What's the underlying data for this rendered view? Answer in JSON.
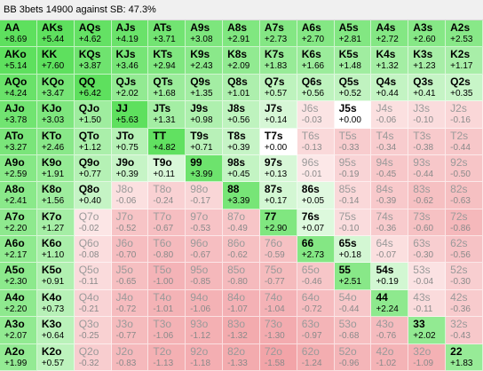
{
  "title": "BB 3bets 14900 against SB: 47.3%",
  "ranks": [
    "A",
    "K",
    "Q",
    "J",
    "T",
    "9",
    "8",
    "7",
    "6",
    "5",
    "4",
    "3",
    "2"
  ],
  "cells": [
    [
      {
        "h": "AA",
        "v": "+8.69",
        "s": 1
      },
      {
        "h": "AKs",
        "v": "+5.44",
        "s": 1
      },
      {
        "h": "AQs",
        "v": "+4.62",
        "s": 1
      },
      {
        "h": "AJs",
        "v": "+4.19",
        "s": 1
      },
      {
        "h": "ATs",
        "v": "+3.71",
        "s": 1
      },
      {
        "h": "A9s",
        "v": "+3.08",
        "s": 1
      },
      {
        "h": "A8s",
        "v": "+2.91",
        "s": 1
      },
      {
        "h": "A7s",
        "v": "+2.73",
        "s": 1
      },
      {
        "h": "A6s",
        "v": "+2.70",
        "s": 1
      },
      {
        "h": "A5s",
        "v": "+2.81",
        "s": 1
      },
      {
        "h": "A4s",
        "v": "+2.72",
        "s": 1
      },
      {
        "h": "A3s",
        "v": "+2.60",
        "s": 1
      },
      {
        "h": "A2s",
        "v": "+2.53",
        "s": 1
      }
    ],
    [
      {
        "h": "AKo",
        "v": "+5.14",
        "s": 1
      },
      {
        "h": "KK",
        "v": "+7.60",
        "s": 1
      },
      {
        "h": "KQs",
        "v": "+3.87",
        "s": 1
      },
      {
        "h": "KJs",
        "v": "+3.46",
        "s": 1
      },
      {
        "h": "KTs",
        "v": "+2.94",
        "s": 1
      },
      {
        "h": "K9s",
        "v": "+2.43",
        "s": 1
      },
      {
        "h": "K8s",
        "v": "+2.09",
        "s": 1
      },
      {
        "h": "K7s",
        "v": "+1.83",
        "s": 1
      },
      {
        "h": "K6s",
        "v": "+1.66",
        "s": 1
      },
      {
        "h": "K5s",
        "v": "+1.48",
        "s": 1
      },
      {
        "h": "K4s",
        "v": "+1.32",
        "s": 1
      },
      {
        "h": "K3s",
        "v": "+1.23",
        "s": 1
      },
      {
        "h": "K2s",
        "v": "+1.17",
        "s": 1
      }
    ],
    [
      {
        "h": "AQo",
        "v": "+4.24",
        "s": 1
      },
      {
        "h": "KQo",
        "v": "+3.47",
        "s": 1
      },
      {
        "h": "QQ",
        "v": "+6.42",
        "s": 1
      },
      {
        "h": "QJs",
        "v": "+2.02",
        "s": 1
      },
      {
        "h": "QTs",
        "v": "+1.68",
        "s": 1
      },
      {
        "h": "Q9s",
        "v": "+1.35",
        "s": 1
      },
      {
        "h": "Q8s",
        "v": "+1.01",
        "s": 1
      },
      {
        "h": "Q7s",
        "v": "+0.57",
        "s": 1
      },
      {
        "h": "Q6s",
        "v": "+0.56",
        "s": 1
      },
      {
        "h": "Q5s",
        "v": "+0.52",
        "s": 1
      },
      {
        "h": "Q4s",
        "v": "+0.44",
        "s": 1
      },
      {
        "h": "Q3s",
        "v": "+0.41",
        "s": 1
      },
      {
        "h": "Q2s",
        "v": "+0.35",
        "s": 1
      }
    ],
    [
      {
        "h": "AJo",
        "v": "+3.78",
        "s": 1
      },
      {
        "h": "KJo",
        "v": "+3.03",
        "s": 1
      },
      {
        "h": "QJo",
        "v": "+1.50",
        "s": 1
      },
      {
        "h": "JJ",
        "v": "+5.63",
        "s": 1
      },
      {
        "h": "JTs",
        "v": "+1.31",
        "s": 1
      },
      {
        "h": "J9s",
        "v": "+0.98",
        "s": 1
      },
      {
        "h": "J8s",
        "v": "+0.56",
        "s": 1
      },
      {
        "h": "J7s",
        "v": "+0.14",
        "s": 1
      },
      {
        "h": "J6s",
        "v": "-0.03",
        "s": 0
      },
      {
        "h": "J5s",
        "v": "+0.00",
        "s": 1
      },
      {
        "h": "J4s",
        "v": "-0.06",
        "s": 0
      },
      {
        "h": "J3s",
        "v": "-0.10",
        "s": 0
      },
      {
        "h": "J2s",
        "v": "-0.16",
        "s": 0
      }
    ],
    [
      {
        "h": "ATo",
        "v": "+3.27",
        "s": 1
      },
      {
        "h": "KTo",
        "v": "+2.46",
        "s": 1
      },
      {
        "h": "QTo",
        "v": "+1.12",
        "s": 1
      },
      {
        "h": "JTo",
        "v": "+0.75",
        "s": 1
      },
      {
        "h": "TT",
        "v": "+4.82",
        "s": 1
      },
      {
        "h": "T9s",
        "v": "+0.71",
        "s": 1
      },
      {
        "h": "T8s",
        "v": "+0.39",
        "s": 1
      },
      {
        "h": "T7s",
        "v": "+0.00",
        "s": 1
      },
      {
        "h": "T6s",
        "v": "-0.13",
        "s": 0
      },
      {
        "h": "T5s",
        "v": "-0.33",
        "s": 0
      },
      {
        "h": "T4s",
        "v": "-0.34",
        "s": 0
      },
      {
        "h": "T3s",
        "v": "-0.38",
        "s": 0
      },
      {
        "h": "T2s",
        "v": "-0.44",
        "s": 0
      }
    ],
    [
      {
        "h": "A9o",
        "v": "+2.59",
        "s": 1
      },
      {
        "h": "K9o",
        "v": "+1.91",
        "s": 1
      },
      {
        "h": "Q9o",
        "v": "+0.77",
        "s": 1
      },
      {
        "h": "J9o",
        "v": "+0.39",
        "s": 1
      },
      {
        "h": "T9o",
        "v": "+0.11",
        "s": 1
      },
      {
        "h": "99",
        "v": "+3.99",
        "s": 1
      },
      {
        "h": "98s",
        "v": "+0.45",
        "s": 1
      },
      {
        "h": "97s",
        "v": "+0.13",
        "s": 1
      },
      {
        "h": "96s",
        "v": "-0.01",
        "s": 0
      },
      {
        "h": "95s",
        "v": "-0.19",
        "s": 0
      },
      {
        "h": "94s",
        "v": "-0.45",
        "s": 0
      },
      {
        "h": "93s",
        "v": "-0.44",
        "s": 0
      },
      {
        "h": "92s",
        "v": "-0.50",
        "s": 0
      }
    ],
    [
      {
        "h": "A8o",
        "v": "+2.41",
        "s": 1
      },
      {
        "h": "K8o",
        "v": "+1.56",
        "s": 1
      },
      {
        "h": "Q8o",
        "v": "+0.40",
        "s": 1
      },
      {
        "h": "J8o",
        "v": "-0.06",
        "s": 0
      },
      {
        "h": "T8o",
        "v": "-0.24",
        "s": 0
      },
      {
        "h": "98o",
        "v": "-0.17",
        "s": 0
      },
      {
        "h": "88",
        "v": "+3.39",
        "s": 1
      },
      {
        "h": "87s",
        "v": "+0.17",
        "s": 1
      },
      {
        "h": "86s",
        "v": "+0.05",
        "s": 1
      },
      {
        "h": "85s",
        "v": "-0.14",
        "s": 0
      },
      {
        "h": "84s",
        "v": "-0.39",
        "s": 0
      },
      {
        "h": "83s",
        "v": "-0.62",
        "s": 0
      },
      {
        "h": "82s",
        "v": "-0.63",
        "s": 0
      }
    ],
    [
      {
        "h": "A7o",
        "v": "+2.20",
        "s": 1
      },
      {
        "h": "K7o",
        "v": "+1.27",
        "s": 1
      },
      {
        "h": "Q7o",
        "v": "-0.02",
        "s": 0
      },
      {
        "h": "J7o",
        "v": "-0.52",
        "s": 0
      },
      {
        "h": "T7o",
        "v": "-0.67",
        "s": 0
      },
      {
        "h": "97o",
        "v": "-0.53",
        "s": 0
      },
      {
        "h": "87o",
        "v": "-0.49",
        "s": 0
      },
      {
        "h": "77",
        "v": "+2.90",
        "s": 1
      },
      {
        "h": "76s",
        "v": "+0.07",
        "s": 1
      },
      {
        "h": "75s",
        "v": "-0.10",
        "s": 0
      },
      {
        "h": "74s",
        "v": "-0.36",
        "s": 0
      },
      {
        "h": "73s",
        "v": "-0.60",
        "s": 0
      },
      {
        "h": "72s",
        "v": "-0.86",
        "s": 0
      }
    ],
    [
      {
        "h": "A6o",
        "v": "+2.17",
        "s": 1
      },
      {
        "h": "K6o",
        "v": "+1.10",
        "s": 1
      },
      {
        "h": "Q6o",
        "v": "-0.08",
        "s": 0
      },
      {
        "h": "J6o",
        "v": "-0.70",
        "s": 0
      },
      {
        "h": "T6o",
        "v": "-0.80",
        "s": 0
      },
      {
        "h": "96o",
        "v": "-0.67",
        "s": 0
      },
      {
        "h": "86o",
        "v": "-0.62",
        "s": 0
      },
      {
        "h": "76o",
        "v": "-0.59",
        "s": 0
      },
      {
        "h": "66",
        "v": "+2.73",
        "s": 1
      },
      {
        "h": "65s",
        "v": "+0.18",
        "s": 1
      },
      {
        "h": "64s",
        "v": "-0.07",
        "s": 0
      },
      {
        "h": "63s",
        "v": "-0.30",
        "s": 0
      },
      {
        "h": "62s",
        "v": "-0.56",
        "s": 0
      }
    ],
    [
      {
        "h": "A5o",
        "v": "+2.30",
        "s": 1
      },
      {
        "h": "K5o",
        "v": "+0.91",
        "s": 1
      },
      {
        "h": "Q5o",
        "v": "-0.11",
        "s": 0
      },
      {
        "h": "J5o",
        "v": "-0.65",
        "s": 0
      },
      {
        "h": "T5o",
        "v": "-1.00",
        "s": 0
      },
      {
        "h": "95o",
        "v": "-0.85",
        "s": 0
      },
      {
        "h": "85o",
        "v": "-0.80",
        "s": 0
      },
      {
        "h": "75o",
        "v": "-0.77",
        "s": 0
      },
      {
        "h": "65o",
        "v": "-0.46",
        "s": 0
      },
      {
        "h": "55",
        "v": "+2.51",
        "s": 1
      },
      {
        "h": "54s",
        "v": "+0.19",
        "s": 1
      },
      {
        "h": "53s",
        "v": "-0.04",
        "s": 0
      },
      {
        "h": "52s",
        "v": "-0.30",
        "s": 0
      }
    ],
    [
      {
        "h": "A4o",
        "v": "+2.20",
        "s": 1
      },
      {
        "h": "K4o",
        "v": "+0.73",
        "s": 1
      },
      {
        "h": "Q4o",
        "v": "-0.21",
        "s": 0
      },
      {
        "h": "J4o",
        "v": "-0.72",
        "s": 0
      },
      {
        "h": "T4o",
        "v": "-1.01",
        "s": 0
      },
      {
        "h": "94o",
        "v": "-1.06",
        "s": 0
      },
      {
        "h": "84o",
        "v": "-1.07",
        "s": 0
      },
      {
        "h": "74o",
        "v": "-1.04",
        "s": 0
      },
      {
        "h": "64o",
        "v": "-0.72",
        "s": 0
      },
      {
        "h": "54o",
        "v": "-0.44",
        "s": 0
      },
      {
        "h": "44",
        "v": "+2.24",
        "s": 1
      },
      {
        "h": "43s",
        "v": "-0.11",
        "s": 0
      },
      {
        "h": "42s",
        "v": "-0.36",
        "s": 0
      }
    ],
    [
      {
        "h": "A3o",
        "v": "+2.07",
        "s": 1
      },
      {
        "h": "K3o",
        "v": "+0.64",
        "s": 1
      },
      {
        "h": "Q3o",
        "v": "-0.25",
        "s": 0
      },
      {
        "h": "J3o",
        "v": "-0.77",
        "s": 0
      },
      {
        "h": "T3o",
        "v": "-1.06",
        "s": 0
      },
      {
        "h": "93o",
        "v": "-1.12",
        "s": 0
      },
      {
        "h": "83o",
        "v": "-1.32",
        "s": 0
      },
      {
        "h": "73o",
        "v": "-1.30",
        "s": 0
      },
      {
        "h": "63o",
        "v": "-0.97",
        "s": 0
      },
      {
        "h": "53o",
        "v": "-0.68",
        "s": 0
      },
      {
        "h": "43o",
        "v": "-0.76",
        "s": 0
      },
      {
        "h": "33",
        "v": "+2.02",
        "s": 1
      },
      {
        "h": "32s",
        "v": "-0.43",
        "s": 0
      }
    ],
    [
      {
        "h": "A2o",
        "v": "+1.99",
        "s": 1
      },
      {
        "h": "K2o",
        "v": "+0.57",
        "s": 1
      },
      {
        "h": "Q2o",
        "v": "-0.32",
        "s": 0
      },
      {
        "h": "J2o",
        "v": "-0.83",
        "s": 0
      },
      {
        "h": "T2o",
        "v": "-1.13",
        "s": 0
      },
      {
        "h": "92o",
        "v": "-1.18",
        "s": 0
      },
      {
        "h": "82o",
        "v": "-1.33",
        "s": 0
      },
      {
        "h": "72o",
        "v": "-1.58",
        "s": 0
      },
      {
        "h": "62o",
        "v": "-1.24",
        "s": 0
      },
      {
        "h": "52o",
        "v": "-0.96",
        "s": 0
      },
      {
        "h": "42o",
        "v": "-1.02",
        "s": 0
      },
      {
        "h": "32o",
        "v": "-1.09",
        "s": 0
      },
      {
        "h": "22",
        "v": "+1.83",
        "s": 1
      }
    ]
  ],
  "colors": {
    "positive_max": "#5ee05e",
    "positive_min": "#eefcee",
    "neutral": "#ffffff",
    "negative_min": "#fdeeee",
    "negative_max": "#f2a4a8"
  }
}
